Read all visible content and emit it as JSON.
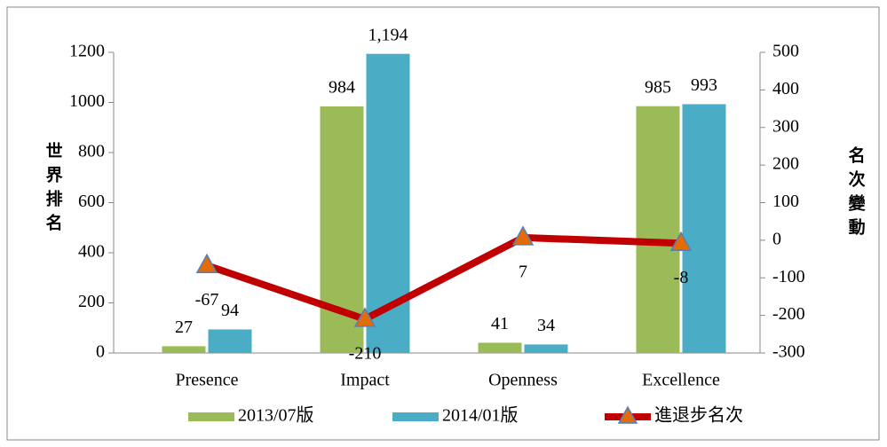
{
  "chart_data": {
    "type": "bar",
    "categories": [
      "Presence",
      "Impact",
      "Openness",
      "Excellence"
    ],
    "y_label": "世界排名",
    "y2_label": "名次變動",
    "series": [
      {
        "name": "2013/07版",
        "color": "#9bbb59",
        "values": [
          27,
          984,
          41,
          985
        ]
      },
      {
        "name": "2014/01版",
        "color": "#4bacc6",
        "values": [
          94,
          1194,
          34,
          993
        ],
        "value_labels": [
          "94",
          "1,194",
          "34",
          "993"
        ]
      },
      {
        "name": "進退步名次",
        "type": "line",
        "axis": "y2",
        "color": "#c00000",
        "marker_color": "#e36c09",
        "values": [
          -67,
          -210,
          7,
          -8
        ]
      }
    ],
    "ylim": [
      0,
      1200
    ],
    "yticks": [
      0,
      200,
      400,
      600,
      800,
      1000,
      1200
    ],
    "y2lim": [
      -300,
      500
    ],
    "y2ticks": [
      -300,
      -200,
      -100,
      0,
      100,
      200,
      300,
      400,
      500
    ],
    "legend": "bottom"
  }
}
